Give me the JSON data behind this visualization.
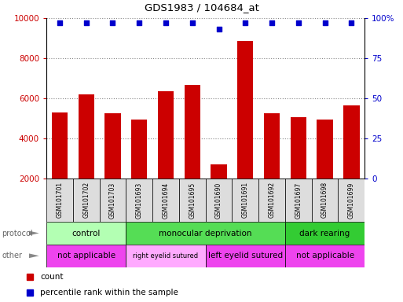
{
  "title": "GDS1983 / 104684_at",
  "samples": [
    "GSM101701",
    "GSM101702",
    "GSM101703",
    "GSM101693",
    "GSM101694",
    "GSM101695",
    "GSM101690",
    "GSM101691",
    "GSM101692",
    "GSM101697",
    "GSM101698",
    "GSM101699"
  ],
  "counts": [
    5300,
    6200,
    5250,
    4950,
    6350,
    6650,
    2700,
    8850,
    5250,
    5050,
    4950,
    5650
  ],
  "percentile_ranks": [
    97,
    97,
    97,
    97,
    97,
    97,
    93,
    97,
    97,
    97,
    97,
    97
  ],
  "ylim_left": [
    2000,
    10000
  ],
  "ylim_right": [
    0,
    100
  ],
  "yticks_left": [
    2000,
    4000,
    6000,
    8000,
    10000
  ],
  "yticks_right": [
    0,
    25,
    50,
    75,
    100
  ],
  "bar_color": "#cc0000",
  "dot_color": "#0000cc",
  "protocol_groups": [
    {
      "label": "control",
      "start": 0,
      "end": 3,
      "color": "#b3ffb3"
    },
    {
      "label": "monocular deprivation",
      "start": 3,
      "end": 9,
      "color": "#55dd55"
    },
    {
      "label": "dark rearing",
      "start": 9,
      "end": 12,
      "color": "#33cc33"
    }
  ],
  "other_groups": [
    {
      "label": "not applicable",
      "start": 0,
      "end": 3,
      "color": "#ee44ee"
    },
    {
      "label": "right eyelid sutured",
      "start": 3,
      "end": 6,
      "color": "#ffaaff"
    },
    {
      "label": "left eyelid sutured",
      "start": 6,
      "end": 9,
      "color": "#ee44ee"
    },
    {
      "label": "not applicable",
      "start": 9,
      "end": 12,
      "color": "#ee44ee"
    }
  ],
  "legend_count_color": "#cc0000",
  "legend_dot_color": "#0000cc",
  "tick_label_color_left": "#cc0000",
  "tick_label_color_right": "#0000cc",
  "grid_color": "#888888",
  "sample_box_color": "#dddddd",
  "background_color": "#ffffff",
  "spine_color": "#000000"
}
